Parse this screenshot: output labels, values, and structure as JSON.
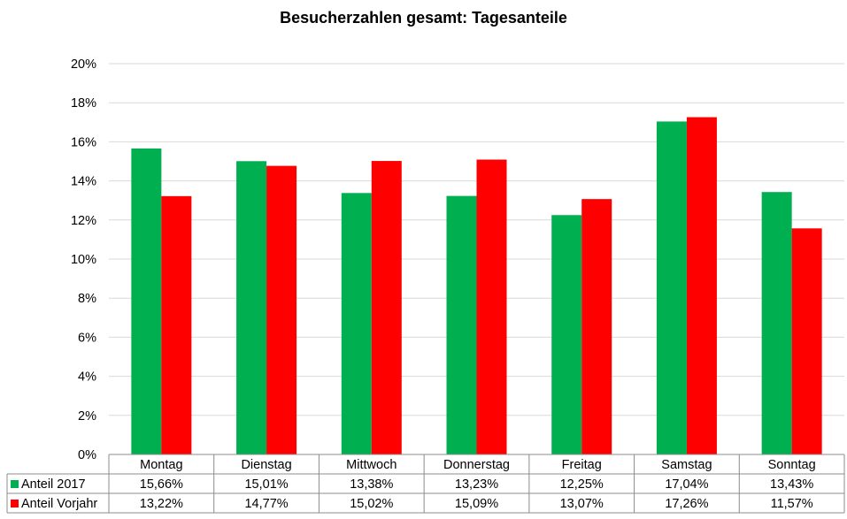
{
  "chart_data": {
    "type": "bar",
    "title": "Besucherzahlen gesamt: Tagesanteile",
    "categories": [
      "Montag",
      "Dienstag",
      "Mittwoch",
      "Donnerstag",
      "Freitag",
      "Samstag",
      "Sonntag"
    ],
    "series": [
      {
        "name": "Anteil 2017",
        "color": "#00b050",
        "values": [
          15.66,
          15.01,
          13.38,
          13.23,
          12.25,
          17.04,
          13.43
        ],
        "labels": [
          "15,66%",
          "15,01%",
          "13,38%",
          "13,23%",
          "12,25%",
          "17,04%",
          "13,43%"
        ]
      },
      {
        "name": "Anteil Vorjahr",
        "color": "#ff0000",
        "values": [
          13.22,
          14.77,
          15.02,
          15.09,
          13.07,
          17.26,
          11.57
        ],
        "labels": [
          "13,22%",
          "14,77%",
          "15,02%",
          "15,09%",
          "13,07%",
          "17,26%",
          "11,57%"
        ]
      }
    ],
    "ylim": [
      0,
      20
    ],
    "yticks": [
      "0%",
      "2%",
      "4%",
      "6%",
      "8%",
      "10%",
      "12%",
      "14%",
      "16%",
      "18%",
      "20%"
    ],
    "grid": true,
    "legend": "data-table",
    "data_table": true
  }
}
